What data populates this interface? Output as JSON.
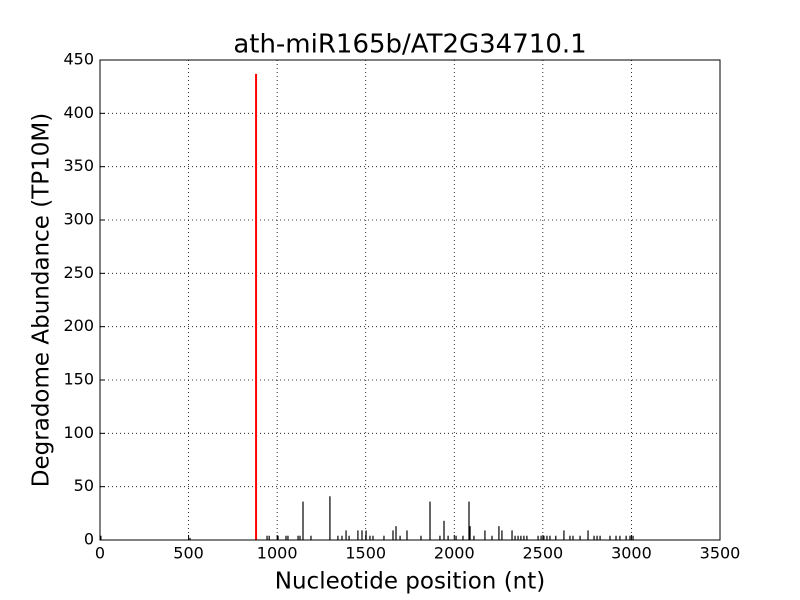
{
  "chart_data": {
    "type": "stem",
    "title": "ath-miR165b/AT2G34710.1",
    "x_label": "Nucleotide position (nt)",
    "y_label": "Degradome Abundance (TP10M)",
    "x": [
      5,
      508,
      943,
      955,
      1005,
      1050,
      1061,
      1118,
      1129,
      1146,
      1191,
      1298,
      1343,
      1366,
      1389,
      1406,
      1456,
      1479,
      1502,
      1524,
      1541,
      1603,
      1654,
      1671,
      1694,
      1733,
      1812,
      1863,
      1919,
      1942,
      1965,
      2010,
      2049,
      2083,
      2089,
      2111,
      2173,
      2213,
      2252,
      2269,
      2326,
      2343,
      2360,
      2376,
      2393,
      2410,
      2473,
      2490,
      2506,
      2523,
      2540,
      2573,
      2619,
      2653,
      2670,
      2710,
      2755,
      2789,
      2806,
      2823,
      2879,
      2913,
      2935,
      2970,
      2992,
      3009
    ],
    "values": [
      4,
      2,
      4,
      4,
      4,
      4,
      4,
      4,
      4,
      36,
      4,
      41,
      4,
      4,
      9,
      4,
      9,
      9,
      9,
      4,
      4,
      4,
      9,
      13,
      4,
      9,
      4,
      36,
      4,
      18,
      4,
      4,
      4,
      36,
      13,
      4,
      9,
      4,
      13,
      9,
      9,
      4,
      4,
      4,
      4,
      4,
      4,
      4,
      4,
      4,
      4,
      4,
      9,
      4,
      4,
      4,
      9,
      4,
      4,
      4,
      4,
      4,
      4,
      4,
      4,
      4
    ],
    "color": "#000000",
    "highlight": {
      "x": 881,
      "value": 437,
      "color": "#ff0000"
    },
    "xlim": [
      0,
      3500
    ],
    "xticks": [
      0,
      500,
      1000,
      1500,
      2000,
      2500,
      3000,
      3500
    ],
    "ylim": [
      0,
      450
    ],
    "yticks": [
      0,
      50,
      100,
      150,
      200,
      250,
      300,
      350,
      400,
      450
    ],
    "grid": true
  }
}
